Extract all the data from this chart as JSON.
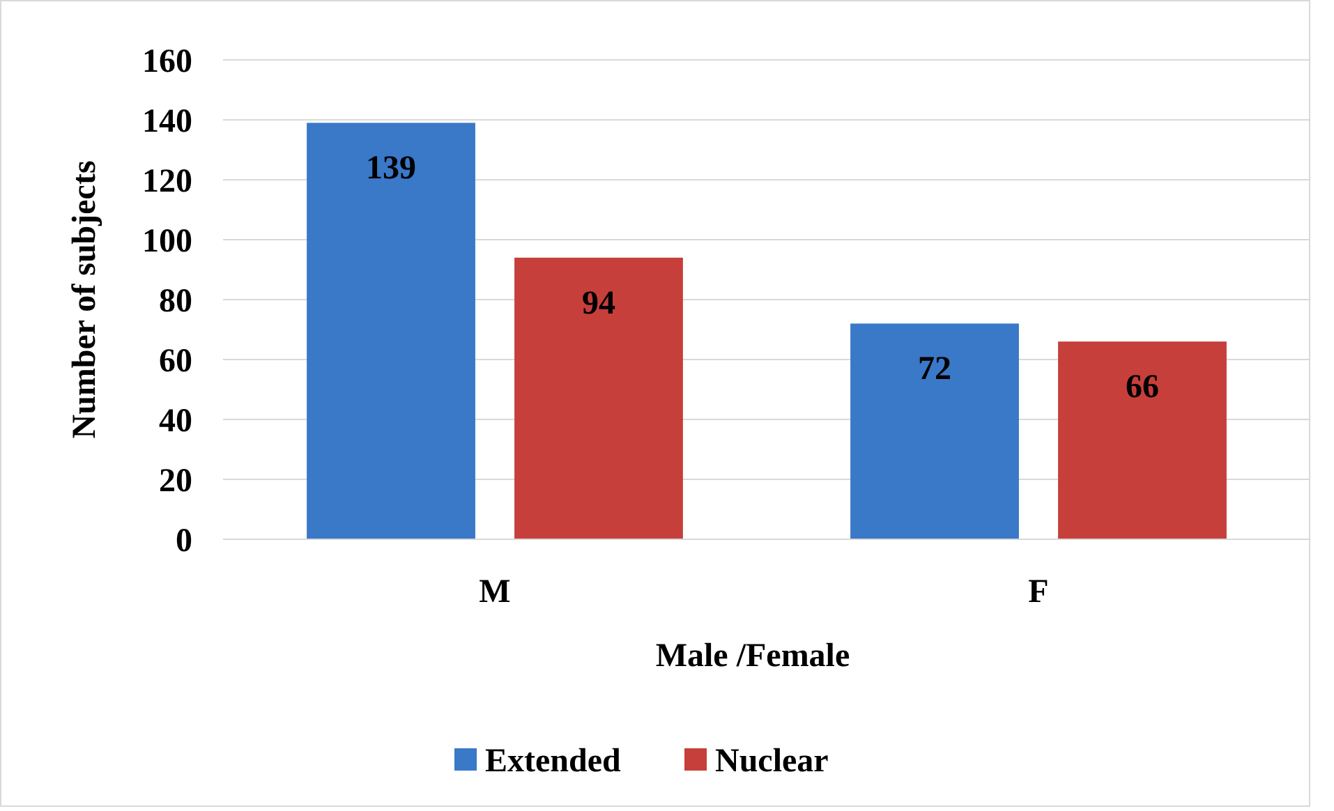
{
  "chart_data": {
    "type": "bar",
    "xlabel": "Male /Female",
    "ylabel": "Number of subjects",
    "categories": [
      "M",
      "F"
    ],
    "series": [
      {
        "name": "Extended",
        "color": "#3a78c8",
        "values": [
          139,
          72
        ]
      },
      {
        "name": "Nuclear",
        "color": "#c63f3a",
        "values": [
          94,
          66
        ]
      }
    ],
    "ylim": [
      0,
      160
    ],
    "yticks": [
      0,
      20,
      40,
      60,
      80,
      100,
      120,
      140,
      160
    ],
    "grid": "y",
    "legend": "bottom",
    "data_labels": true
  }
}
